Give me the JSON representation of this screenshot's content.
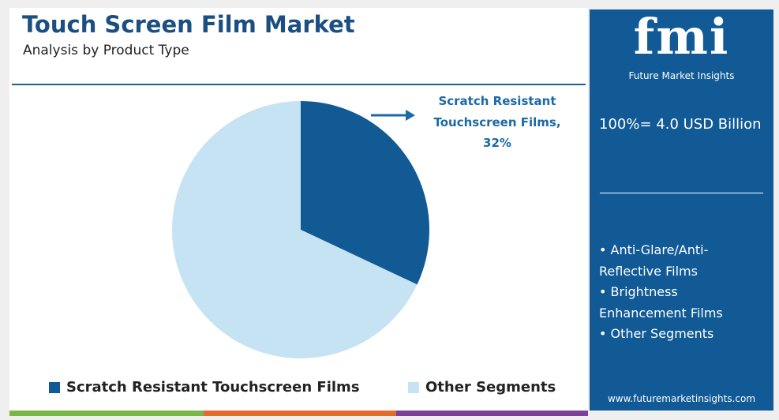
{
  "chart_data": {
    "type": "pie",
    "title": "Touch Screen Film Market",
    "subtitle": "Analysis by Product Type",
    "categories": [
      "Scratch Resistant Touchscreen Films",
      "Other Segments"
    ],
    "values": [
      32,
      68
    ],
    "value_labels": [
      "Scratch Resistant Touchscreen Films, 32%",
      null
    ],
    "colors": [
      "#115a94",
      "#c6e3f4"
    ]
  },
  "sidebar": {
    "logo": "fmi",
    "brand": "Future Market Insights",
    "total": "100%= 4.0 USD Billion",
    "bullets": [
      "• Anti-Glare/Anti-Reflective Films",
      "• Brightness Enhancement Films",
      "• Other Segments"
    ],
    "website": "www.futuremarketinsights.com"
  }
}
